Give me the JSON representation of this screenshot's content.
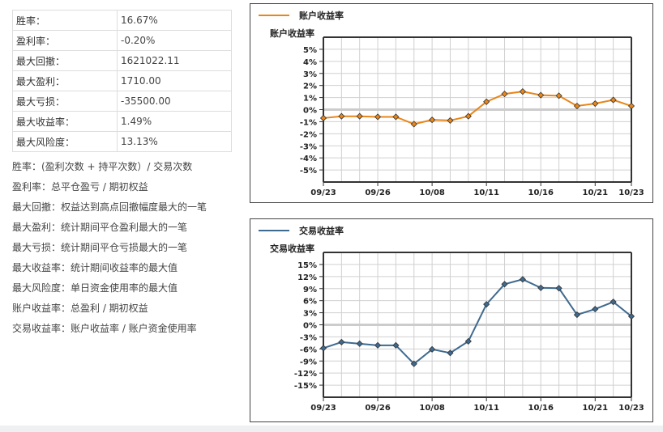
{
  "stats": [
    {
      "label": "胜率：",
      "value": "16.67%"
    },
    {
      "label": "盈利率：",
      "value": "-0.20%"
    },
    {
      "label": "最大回撤：",
      "value": "1621022.11"
    },
    {
      "label": "最大盈利：",
      "value": "1710.00"
    },
    {
      "label": "最大亏损：",
      "value": "-35500.00"
    },
    {
      "label": "最大收益率：",
      "value": "1.49%"
    },
    {
      "label": "最大风险度：",
      "value": "13.13%"
    }
  ],
  "definitions": [
    "胜率：(盈利次数 + 持平次数）/ 交易次数",
    "盈利率：总平仓盈亏 / 期初权益",
    "最大回撤：权益达到高点回撤幅度最大的一笔",
    "最大盈利：统计期间平仓盈利最大的一笔",
    "最大亏损：统计期间平仓亏损最大的一笔",
    "最大收益率：统计期间收益率的最大值",
    "最大风险度：单日资金使用率的最大值",
    "账户收益率：总盈利 / 期初权益",
    "交易收益率：账户收益率 / 账户资金使用率"
  ],
  "chart_data": [
    {
      "type": "line",
      "title": "账户收益率",
      "legend": "账户收益率",
      "legend_position": "top-left",
      "ylabel": "账户收益率",
      "color": "#e8861a",
      "ylim": [
        -6,
        6
      ],
      "yticks": [
        5,
        4,
        3,
        2,
        1,
        0,
        -1,
        -2,
        -3,
        -4,
        -5
      ],
      "ytick_labels": [
        "5%",
        "4%",
        "3%",
        "2%",
        "1%",
        "0%",
        "-1%",
        "-2%",
        "-3%",
        "-4%",
        "-5%"
      ],
      "xtick_labels": [
        {
          "i": 0,
          "label": "09/23"
        },
        {
          "i": 3,
          "label": "09/26"
        },
        {
          "i": 6,
          "label": "10/08"
        },
        {
          "i": 9,
          "label": "10/11"
        },
        {
          "i": 12,
          "label": "10/16"
        },
        {
          "i": 15,
          "label": "10/21"
        },
        {
          "i": 17,
          "label": "10/23"
        }
      ],
      "values": [
        -0.7,
        -0.55,
        -0.55,
        -0.6,
        -0.6,
        -1.2,
        -0.85,
        -0.9,
        -0.55,
        0.65,
        1.3,
        1.5,
        1.2,
        1.15,
        0.3,
        0.5,
        0.8,
        0.3
      ],
      "grid": true
    },
    {
      "type": "line",
      "title": "交易收益率",
      "legend": "交易收益率",
      "legend_position": "top-left",
      "ylabel": "交易收益率",
      "color": "#3f6a8f",
      "ylim": [
        -18,
        18
      ],
      "yticks": [
        15,
        12,
        9,
        6,
        3,
        0,
        -3,
        -6,
        -9,
        -12,
        -15
      ],
      "ytick_labels": [
        "15%",
        "12%",
        "9%",
        "6%",
        "3%",
        "0%",
        "-3%",
        "-6%",
        "-9%",
        "-12%",
        "-15%"
      ],
      "xtick_labels": [
        {
          "i": 0,
          "label": "09/23"
        },
        {
          "i": 3,
          "label": "09/26"
        },
        {
          "i": 6,
          "label": "10/08"
        },
        {
          "i": 9,
          "label": "10/11"
        },
        {
          "i": 12,
          "label": "10/16"
        },
        {
          "i": 15,
          "label": "10/21"
        },
        {
          "i": 17,
          "label": "10/23"
        }
      ],
      "values": [
        -5.8,
        -4.3,
        -4.7,
        -5.1,
        -5.1,
        -9.7,
        -6.1,
        -7.0,
        -4.1,
        5.1,
        10.1,
        11.3,
        9.2,
        9.1,
        2.5,
        3.9,
        5.7,
        2.1
      ],
      "grid": true
    }
  ]
}
